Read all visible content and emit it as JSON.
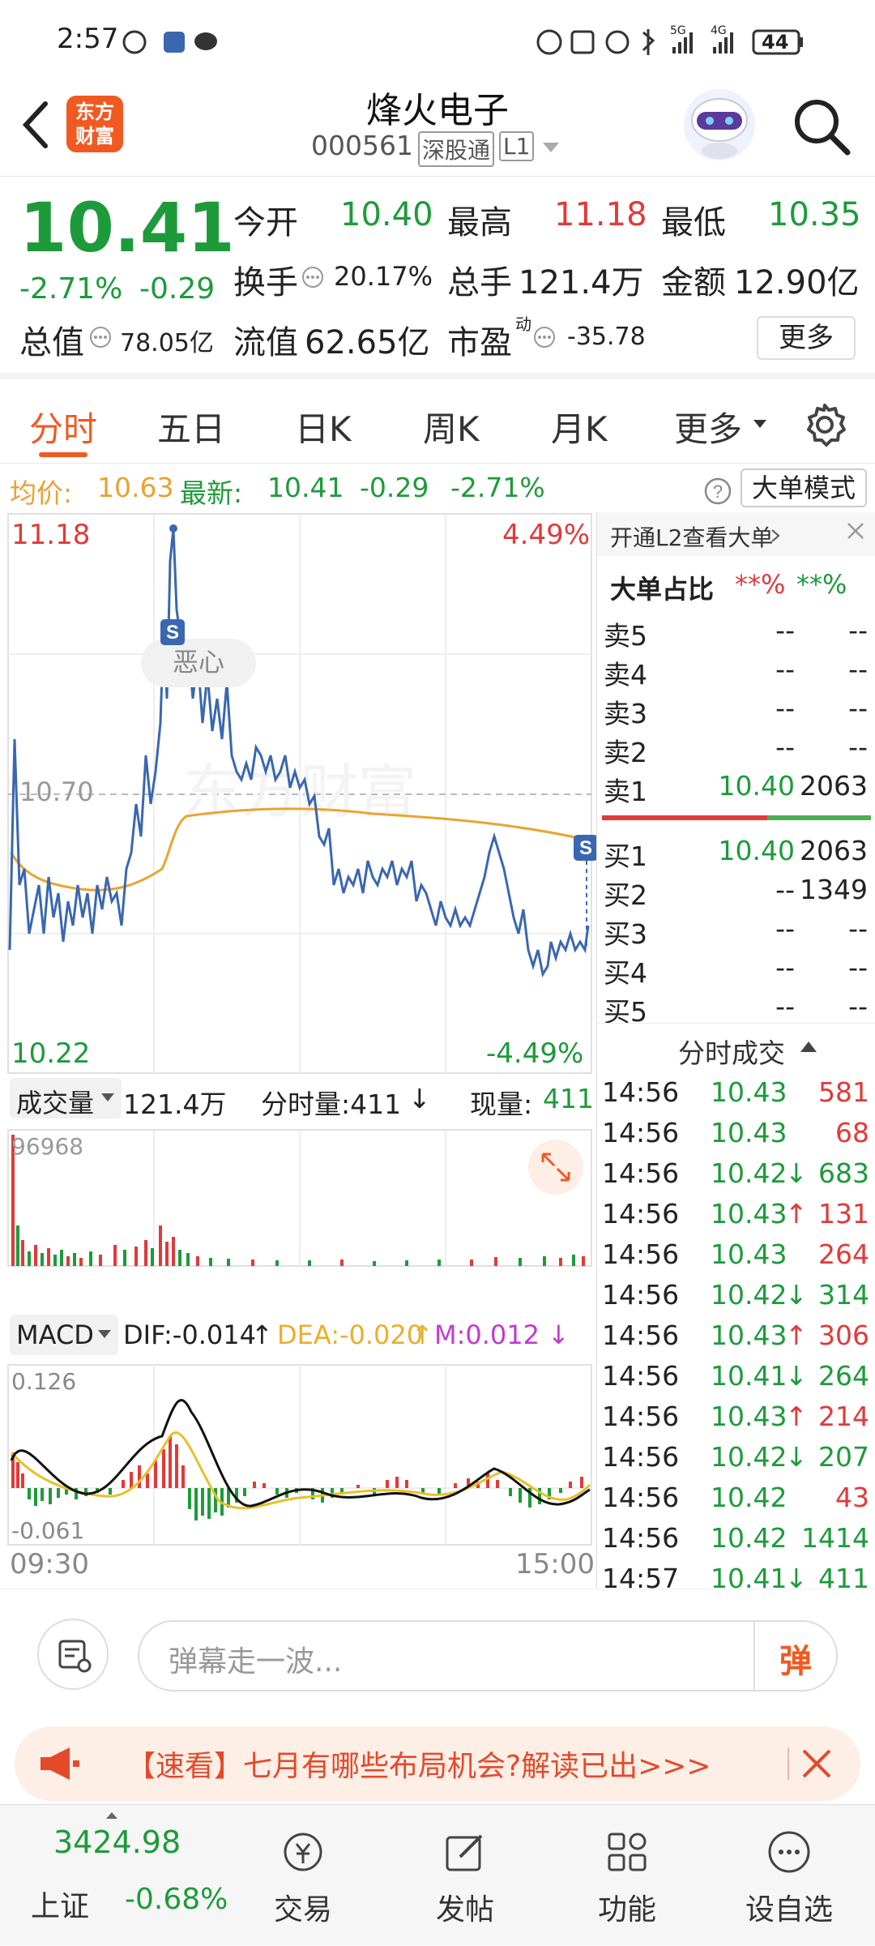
{
  "status_bar": {
    "time": "2:57",
    "battery": "44",
    "net_5g": "5G",
    "net_4g": "4G"
  },
  "header": {
    "logo_line1": "东方",
    "logo_line2": "财富",
    "stock_name": "烽火电子",
    "stock_code": "000561",
    "tag_market": "深股通",
    "tag_level": "L1"
  },
  "quote": {
    "price": "10.41",
    "change_pct": "-2.71%",
    "change_amt": "-0.29",
    "open_label": "今开",
    "open": "10.40",
    "high_label": "最高",
    "high": "11.18",
    "low_label": "最低",
    "low": "10.35",
    "turnover_label": "换手",
    "turnover": "20.17%",
    "volume_label": "总手",
    "volume": "121.4万",
    "amount_label": "金额",
    "amount": "12.90亿",
    "mktcap_label": "总值",
    "mktcap": "78.05亿",
    "float_label": "流值",
    "float": "62.65亿",
    "pe_label": "市盈",
    "pe_sup": "动",
    "pe": "-35.78",
    "more_button": "更多"
  },
  "tabs": {
    "items": [
      "分时",
      "五日",
      "日K",
      "周K",
      "月K",
      "更多"
    ],
    "active": 0
  },
  "avg_line": {
    "avg_label": "均价:",
    "avg_value": "10.63",
    "latest_label": "最新:",
    "latest_value": "10.41",
    "latest_change": "-0.29",
    "latest_pct": "-2.71%",
    "mode_button": "大单模式"
  },
  "intraday": {
    "high_price": "11.18",
    "high_pct": "4.49%",
    "low_price": "10.22",
    "low_pct": "-4.49%",
    "prev_close_label": "10.70",
    "annotation": "恶心",
    "s_marker": "S",
    "watermark": "东方财富"
  },
  "volume": {
    "label": "成交量",
    "total": "121.4万",
    "minute_label": "分时量:411",
    "minute_arrow": "↓",
    "current_label": "现量:",
    "current_value": "411",
    "max": "96968"
  },
  "macd": {
    "label": "MACD",
    "dif": "DIF:-0.014",
    "dif_arrow": "↑",
    "dea": "DEA:-0.020",
    "dea_arrow": "↑",
    "m": "M:0.012",
    "m_arrow": "↓",
    "top": "0.126",
    "bottom": "-0.061",
    "time_start": "09:30",
    "time_end": "15:00"
  },
  "orderbook": {
    "l2_link": "开通L2查看大单",
    "big_label": "大单占比",
    "big_red": "**%",
    "big_green": "**%",
    "asks": [
      {
        "label": "卖5",
        "price": "--",
        "vol": "--"
      },
      {
        "label": "卖4",
        "price": "--",
        "vol": "--"
      },
      {
        "label": "卖3",
        "price": "--",
        "vol": "--"
      },
      {
        "label": "卖2",
        "price": "--",
        "vol": "--"
      },
      {
        "label": "卖1",
        "price": "10.40",
        "vol": "2063"
      }
    ],
    "bids": [
      {
        "label": "买1",
        "price": "10.40",
        "vol": "2063"
      },
      {
        "label": "买2",
        "price": "--",
        "vol": "1349"
      },
      {
        "label": "买3",
        "price": "--",
        "vol": "--"
      },
      {
        "label": "买4",
        "price": "--",
        "vol": "--"
      },
      {
        "label": "买5",
        "price": "--",
        "vol": "--"
      }
    ],
    "trades_label": "分时成交",
    "trades": [
      {
        "time": "14:56",
        "price": "10.43",
        "arrow": "",
        "vol": "581",
        "dir": "up"
      },
      {
        "time": "14:56",
        "price": "10.43",
        "arrow": "",
        "vol": "68",
        "dir": "up"
      },
      {
        "time": "14:56",
        "price": "10.42",
        "arrow": "↓",
        "vol": "683",
        "dir": "down"
      },
      {
        "time": "14:56",
        "price": "10.43",
        "arrow": "↑",
        "vol": "131",
        "dir": "up"
      },
      {
        "time": "14:56",
        "price": "10.43",
        "arrow": "",
        "vol": "264",
        "dir": "up"
      },
      {
        "time": "14:56",
        "price": "10.42",
        "arrow": "↓",
        "vol": "314",
        "dir": "down"
      },
      {
        "time": "14:56",
        "price": "10.43",
        "arrow": "↑",
        "vol": "306",
        "dir": "up"
      },
      {
        "time": "14:56",
        "price": "10.41",
        "arrow": "↓",
        "vol": "264",
        "dir": "down"
      },
      {
        "time": "14:56",
        "price": "10.43",
        "arrow": "↑",
        "vol": "214",
        "dir": "up"
      },
      {
        "time": "14:56",
        "price": "10.42",
        "arrow": "↓",
        "vol": "207",
        "dir": "down"
      },
      {
        "time": "14:56",
        "price": "10.42",
        "arrow": "",
        "vol": "43",
        "dir": "up"
      },
      {
        "time": "14:56",
        "price": "10.42",
        "arrow": "",
        "vol": "1414",
        "dir": "down"
      },
      {
        "time": "14:57",
        "price": "10.41",
        "arrow": "↓",
        "vol": "411",
        "dir": "down"
      }
    ]
  },
  "comment": {
    "placeholder": "弹幕走一波...",
    "danmu_button": "弹"
  },
  "promo": {
    "text": "【速看】七月有哪些布局机会?解读已出>>>"
  },
  "bottom_nav": {
    "index_value": "3424.98",
    "index_name": "上证",
    "index_change": "-0.68%",
    "items": [
      "交易",
      "发帖",
      "功能",
      "设自选"
    ]
  },
  "colors": {
    "up": "#e03a3a",
    "down": "#1d9b3a",
    "accent": "#f05a22",
    "price_line": "#3a67b0",
    "avg_line": "#e8a532"
  }
}
